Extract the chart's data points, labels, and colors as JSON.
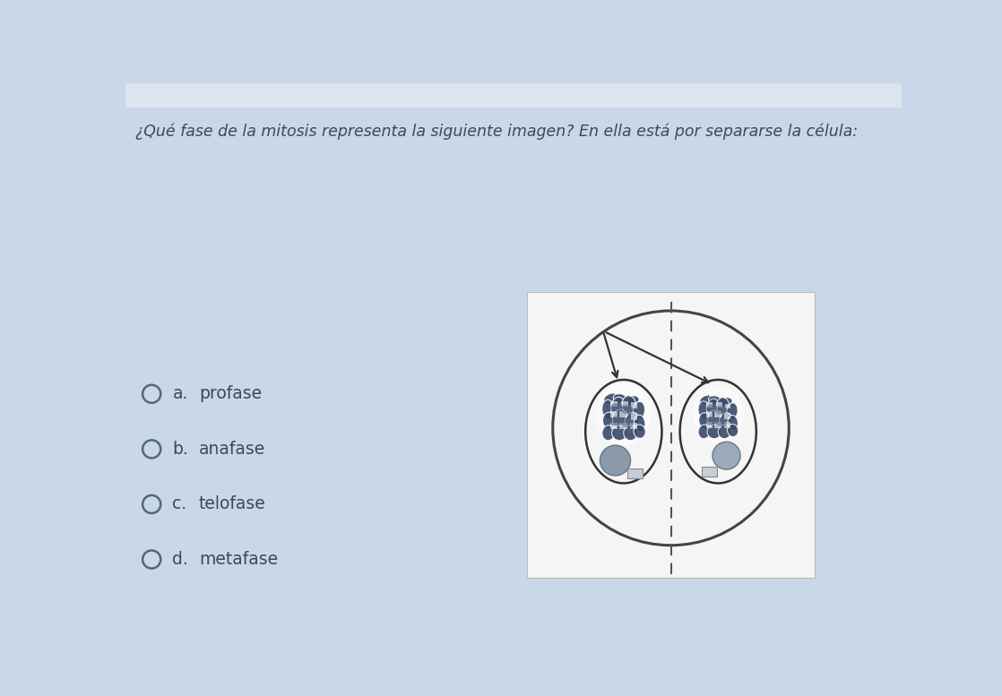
{
  "question": "¿Qué fase de la mitosis representa la siguiente imagen? En ella está por separarse la célula:",
  "options_letters": [
    "a.",
    "b.",
    "c.",
    "d."
  ],
  "options_words": [
    "profase",
    "anafase",
    "telofase",
    "metafase"
  ],
  "bg_color": "#c8d8e8",
  "header_color": "#dde5ee",
  "box_bg": "#f5f5f5",
  "text_color": "#3a4a5a",
  "question_fontsize": 12.5,
  "option_fontsize": 13.5,
  "chrom_dark": "#3a4a6a",
  "chrom_mid": "#5a6a8a",
  "chrom_light": "#7a8aaa",
  "nucleolus_color": "#8a9aaa",
  "rect_color": "#c8ccd4"
}
